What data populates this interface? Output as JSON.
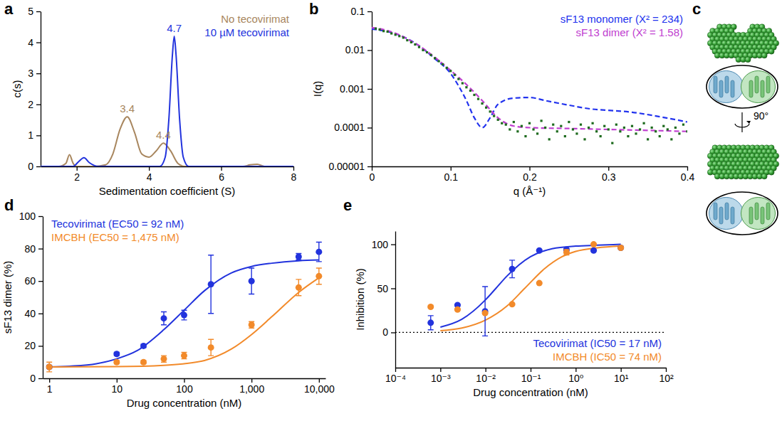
{
  "chart_data": [
    {
      "type": "line",
      "title": "a",
      "xlabel": "Sedimentation coefficient (S)",
      "ylabel": "c(s)",
      "xlim": [
        1,
        8
      ],
      "xticks": [
        2,
        4,
        6,
        8
      ],
      "ylim": [
        0,
        5
      ],
      "yticks": [
        0,
        1,
        2,
        3,
        4,
        5
      ],
      "legend": "upper right",
      "series": [
        {
          "name": "No tecovirimat",
          "color": "#a8865e",
          "line_style": "solid",
          "x": [
            1,
            1.5,
            1.7,
            1.8,
            1.9,
            2.0,
            2.5,
            2.8,
            3.0,
            3.2,
            3.4,
            3.6,
            3.8,
            4.0,
            4.2,
            4.4,
            4.6,
            4.8,
            5.0,
            6.0,
            6.6,
            6.8,
            7.0,
            7.2,
            8.0
          ],
          "values": [
            0,
            0,
            0.1,
            0.38,
            0.1,
            0,
            0,
            0.05,
            0.4,
            1.2,
            1.6,
            1.1,
            0.4,
            0.3,
            0.5,
            0.75,
            0.5,
            0.1,
            0,
            0,
            0,
            0.05,
            0.07,
            0,
            0
          ],
          "annotations": [
            {
              "text": "3.4",
              "x": 3.4,
              "y": 1.6
            },
            {
              "text": "4.4",
              "x": 4.4,
              "y": 0.75
            }
          ]
        },
        {
          "name": "10 µM tecovirimat",
          "color": "#2233dd",
          "line_style": "solid",
          "x": [
            1,
            1.9,
            2.05,
            2.2,
            2.35,
            2.6,
            4.3,
            4.45,
            4.55,
            4.65,
            4.7,
            4.75,
            4.85,
            4.95,
            5.1,
            8
          ],
          "values": [
            0,
            0,
            0.15,
            0.28,
            0.12,
            0,
            0,
            0.3,
            1.5,
            3.6,
            4.2,
            3.6,
            1.5,
            0.3,
            0,
            0
          ],
          "annotations": [
            {
              "text": "4.7",
              "x": 4.7,
              "y": 4.2
            }
          ]
        }
      ]
    },
    {
      "type": "scatter",
      "title": "b",
      "xlabel": "q (Å⁻¹)",
      "ylabel": "I(q)",
      "log": "y",
      "xlim": [
        0,
        0.4
      ],
      "xticks": [
        0,
        0.1,
        0.2,
        0.3,
        0.4
      ],
      "ylim": [
        1e-05,
        0.1
      ],
      "yticks": [
        1e-05,
        0.0001,
        0.001,
        0.01,
        0.1
      ],
      "legend": "upper right",
      "series": [
        {
          "type": "scatter",
          "marker": "square",
          "color": "#1e6b1e",
          "x": [
            0.005,
            0.01,
            0.015,
            0.02,
            0.025,
            0.03,
            0.035,
            0.04,
            0.045,
            0.05,
            0.055,
            0.06,
            0.065,
            0.07,
            0.075,
            0.08,
            0.085,
            0.09,
            0.095,
            0.1,
            0.105,
            0.11,
            0.115,
            0.12,
            0.125,
            0.13,
            0.135,
            0.14,
            0.145,
            0.15,
            0.155,
            0.16,
            0.165,
            0.17,
            0.175,
            0.18,
            0.185,
            0.19,
            0.195,
            0.2,
            0.205,
            0.21,
            0.215,
            0.22,
            0.225,
            0.23,
            0.235,
            0.24,
            0.245,
            0.25,
            0.255,
            0.26,
            0.265,
            0.27,
            0.275,
            0.28,
            0.285,
            0.29,
            0.295,
            0.3,
            0.305,
            0.31,
            0.315,
            0.32,
            0.325,
            0.33,
            0.335,
            0.34,
            0.345,
            0.35,
            0.355,
            0.36,
            0.365,
            0.37,
            0.375,
            0.38,
            0.385,
            0.39,
            0.395,
            0.4
          ],
          "values": [
            0.036,
            0.034,
            0.031,
            0.03,
            0.027,
            0.025,
            0.023,
            0.021,
            0.018,
            0.016,
            0.014,
            0.012,
            0.01,
            0.0088,
            0.0075,
            0.0062,
            0.0052,
            0.0043,
            0.0035,
            0.0029,
            0.0023,
            0.0018,
            0.0014,
            0.0011,
            0.0009,
            0.0007,
            0.00055,
            0.00042,
            0.00033,
            0.00026,
            0.0002,
            0.00016,
            0.00013,
            0.00012,
            9e-05,
            0.00014,
            8e-05,
            0.00011,
            6e-05,
            0.00013,
            9e-05,
            7e-05,
            0.00015,
            0.0001,
            5e-05,
            0.00012,
            8e-05,
            0.00011,
            6e-05,
            0.00014,
            9e-05,
            7e-05,
            0.00012,
            5e-05,
            0.0001,
            0.00013,
            8e-05,
            6e-05,
            0.00011,
            9e-05,
            4e-05,
            0.00012,
            8e-05,
            0.0001,
            6e-05,
            0.00011,
            7e-05,
            9e-05,
            0.00013,
            5e-05,
            0.0001,
            8e-05,
            6e-05,
            0.00011,
            9e-05,
            5e-05,
            0.0001,
            7e-05,
            0.00012,
            8e-05
          ]
        },
        {
          "name": "sF13 monomer (X² = 234)",
          "type": "line",
          "line_style": "dashed",
          "color": "#2233ee",
          "x": [
            0,
            0.02,
            0.04,
            0.06,
            0.08,
            0.1,
            0.11,
            0.12,
            0.13,
            0.14,
            0.15,
            0.16,
            0.18,
            0.2,
            0.22,
            0.25,
            0.28,
            0.3,
            0.33,
            0.36,
            0.4
          ],
          "values": [
            0.035,
            0.03,
            0.022,
            0.013,
            0.006,
            0.0025,
            0.0012,
            0.0005,
            0.00018,
            0.0001,
            0.00018,
            0.0004,
            0.00058,
            0.0006,
            0.0005,
            0.00038,
            0.0003,
            0.00028,
            0.00025,
            0.0002,
            0.00014
          ]
        },
        {
          "name": "sF13 dimer (X² = 1.58)",
          "type": "line",
          "line_style": "dashed",
          "color": "#c040d0",
          "x": [
            0,
            0.02,
            0.04,
            0.06,
            0.08,
            0.1,
            0.12,
            0.14,
            0.16,
            0.18,
            0.2,
            0.25,
            0.3,
            0.35,
            0.4
          ],
          "values": [
            0.038,
            0.032,
            0.022,
            0.013,
            0.0065,
            0.003,
            0.0013,
            0.0005,
            0.00018,
            0.00011,
            0.0001,
            9.5e-05,
            9e-05,
            8.5e-05,
            8e-05
          ]
        }
      ]
    },
    {
      "type": "structure",
      "title": "c",
      "annotations": [
        {
          "text": "90°"
        }
      ]
    },
    {
      "type": "scatter",
      "title": "d",
      "xlabel": "Drug concentration (nM)",
      "ylabel": "sF13 dimer (%)",
      "log": "x",
      "xlim": [
        0.8,
        12500
      ],
      "xticks": [
        1,
        10,
        100,
        {
          "value": 1000,
          "label": "1,000"
        },
        {
          "value": 10000,
          "label": "10,000"
        }
      ],
      "ylim": [
        0,
        100
      ],
      "yticks": [
        0,
        20,
        40,
        60,
        80,
        100
      ],
      "legend": "upper left",
      "series": [
        {
          "type": "line",
          "line_style": "solid",
          "color": "#2233dd",
          "x": [
            1,
            2,
            5,
            10,
            20,
            50,
            100,
            200,
            500,
            1000,
            2000,
            5000,
            10000
          ],
          "values": [
            7,
            7.5,
            9,
            12,
            17,
            30,
            42,
            54,
            65,
            69,
            71,
            72.5,
            73
          ]
        },
        {
          "type": "line",
          "line_style": "solid",
          "color": "#f28a2a",
          "x": [
            1,
            10,
            50,
            100,
            200,
            500,
            1000,
            2000,
            5000,
            10000
          ],
          "values": [
            7,
            7.2,
            8,
            9,
            11,
            18,
            27,
            38,
            53,
            62
          ]
        },
        {
          "name": "Tecovirimat (EC50 = 92 nM)",
          "type": "scatter",
          "marker": "circle",
          "color": "#2233dd",
          "x": [
            1,
            10,
            25,
            50,
            100,
            250,
            1000,
            5000,
            10000
          ],
          "values": [
            7,
            15,
            20,
            37,
            39,
            58,
            60,
            75,
            78
          ],
          "errors": [
            1,
            1,
            1,
            4,
            3,
            18,
            8,
            2,
            6
          ]
        },
        {
          "name": "IMCBH (EC50 = 1,475 nM)",
          "type": "scatter",
          "marker": "circle",
          "color": "#f28a2a",
          "x": [
            1,
            10,
            25,
            50,
            100,
            250,
            1000,
            5000,
            10000
          ],
          "values": [
            7,
            10,
            10,
            12,
            14,
            19,
            33,
            56,
            63
          ],
          "errors": [
            3,
            1,
            1,
            2,
            2,
            5,
            2,
            5,
            5
          ]
        }
      ]
    },
    {
      "type": "scatter",
      "title": "e",
      "xlabel": "Drug concentration (nM)",
      "ylabel": "Inhibition (%)",
      "log": "x",
      "xlim": [
        0.0001,
        100
      ],
      "xticks": [
        {
          "value": 0.0001,
          "label": "10⁻⁴"
        },
        {
          "value": 0.001,
          "label": "10⁻³"
        },
        {
          "value": 0.01,
          "label": "10⁻²"
        },
        {
          "value": 0.1,
          "label": "10⁻¹"
        },
        {
          "value": 1,
          "label": "10⁰"
        },
        {
          "value": 10,
          "label": "10¹"
        },
        {
          "value": 100,
          "label": "10²"
        }
      ],
      "ylim": [
        -40,
        115
      ],
      "yticks": [
        0,
        50,
        100
      ],
      "legend": "lower right",
      "annotations": [
        {
          "y": 0,
          "line_style": "dotted"
        }
      ],
      "series": [
        {
          "type": "line",
          "line_style": "solid",
          "color": "#2233dd",
          "x": [
            0.001,
            0.003,
            0.01,
            0.017,
            0.03,
            0.1,
            0.3,
            1,
            3,
            10
          ],
          "values": [
            6,
            15,
            37,
            50,
            64,
            86,
            95,
            98,
            99,
            100
          ]
        },
        {
          "type": "line",
          "line_style": "solid",
          "color": "#f28a2a",
          "x": [
            0.001,
            0.003,
            0.01,
            0.03,
            0.074,
            0.2,
            0.5,
            1,
            3,
            10
          ],
          "values": [
            2,
            5,
            14,
            30,
            50,
            72,
            86,
            92,
            96,
            98
          ]
        },
        {
          "name": "Tecovirimat (IC50 = 17 nM)",
          "type": "scatter",
          "marker": "circle",
          "color": "#2233dd",
          "x": [
            0.00061,
            0.0024,
            0.0098,
            0.039,
            0.156,
            0.625,
            2.5,
            10
          ],
          "values": [
            11,
            31,
            24,
            72,
            93,
            94,
            93,
            96
          ],
          "errors": [
            8,
            1,
            28,
            10,
            1,
            1,
            1,
            1
          ]
        },
        {
          "name": "IMCBH (IC50 = 74 nM)",
          "type": "scatter",
          "marker": "circle",
          "color": "#f28a2a",
          "x": [
            0.00061,
            0.0024,
            0.0098,
            0.039,
            0.156,
            0.625,
            2.5,
            10
          ],
          "values": [
            29,
            26,
            22,
            32,
            56,
            91,
            100,
            96
          ],
          "errors": [
            1,
            1,
            1,
            1,
            1,
            3,
            1,
            1
          ]
        }
      ]
    }
  ]
}
